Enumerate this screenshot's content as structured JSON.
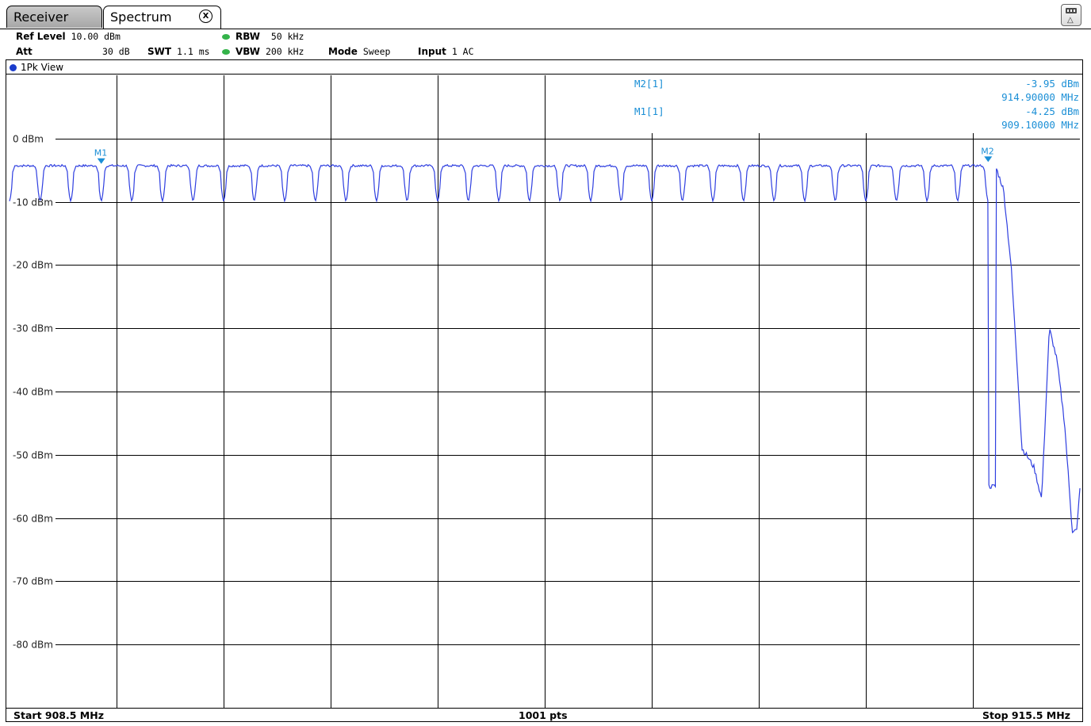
{
  "tabs": [
    {
      "label": "Receiver",
      "active": false
    },
    {
      "label": "Spectrum",
      "active": true
    }
  ],
  "tab_close_label": "X",
  "overview_icon": "channel-overview-icon",
  "settings": {
    "ref_level_label": "Ref Level",
    "ref_level_value": "10.00 dBm",
    "att_label": "Att",
    "att_value": "30 dB",
    "swt_label": "SWT",
    "swt_value": "1.1 ms",
    "rbw_label": "RBW",
    "rbw_value": "50 kHz",
    "vbw_label": "VBW",
    "vbw_value": "200 kHz",
    "mode_label": "Mode",
    "mode_value": "Sweep",
    "input_label": "Input",
    "input_value": "1 AC"
  },
  "window_label": "1Pk View",
  "markers": [
    {
      "id": "M2[1]",
      "level": "-3.95 dBm",
      "freq": "914.90000 MHz",
      "tag": "M2",
      "x_mhz": 914.9,
      "y_dbm": -3.95
    },
    {
      "id": "M1[1]",
      "level": "-4.25 dBm",
      "freq": "909.10000 MHz",
      "tag": "M1",
      "x_mhz": 909.1,
      "y_dbm": -4.25
    }
  ],
  "footer": {
    "start": "Start 908.5 MHz",
    "points": "1001 pts",
    "stop": "Stop 915.5 MHz"
  },
  "colors": {
    "trace": "#2f3fe0",
    "marker": "#1b8fd6",
    "grid": "#000000"
  },
  "chart_data": {
    "type": "line",
    "x_start_mhz": 908.5,
    "x_stop_mhz": 915.5,
    "points": 1001,
    "ylim": [
      -90,
      10
    ],
    "y_tick_labels": [
      "0 dBm",
      "-10 dBm",
      "-20 dBm",
      "-30 dBm",
      "-40 dBm",
      "-50 dBm",
      "-60 dBm",
      "-70 dBm",
      "-80 dBm"
    ],
    "y_tick_values": [
      0,
      -10,
      -20,
      -30,
      -40,
      -50,
      -60,
      -70,
      -80
    ],
    "x_divisions": 10,
    "grid": true,
    "series": [
      {
        "channel_count": 32,
        "channel_spacing_mhz": 0.2,
        "first_channel_mhz": 908.6,
        "channel_top_dbm": -4.3,
        "channel_gap_dbm": -9.9,
        "envelope": [
          [
            914.95,
            -4.5
          ],
          [
            915.0,
            -8
          ],
          [
            915.05,
            -20
          ],
          [
            915.1,
            -40
          ],
          [
            915.12,
            -49
          ],
          [
            915.15,
            -50
          ],
          [
            915.2,
            -52
          ],
          [
            915.25,
            -57
          ],
          [
            915.3,
            -30
          ],
          [
            915.35,
            -35
          ],
          [
            915.4,
            -45
          ],
          [
            915.45,
            -62
          ],
          [
            915.48,
            -62
          ],
          [
            915.5,
            -55
          ]
        ]
      }
    ]
  }
}
